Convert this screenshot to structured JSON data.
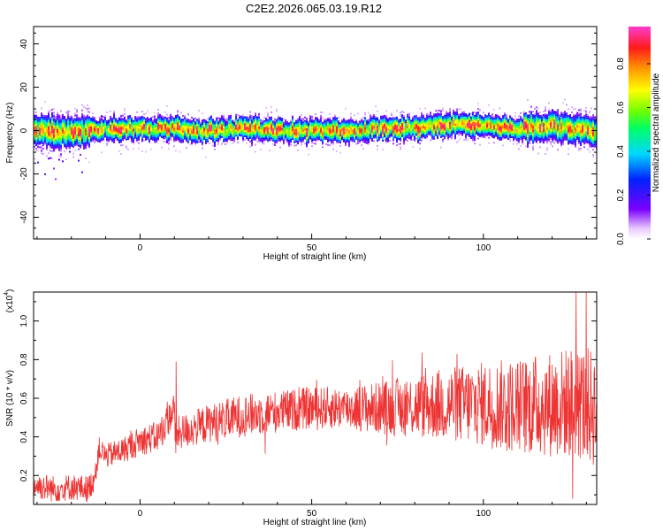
{
  "title": "C2E2.2026.065.03.19.R12",
  "chart_data": [
    {
      "type": "heatmap",
      "xlabel": "Height of straight line (km)",
      "ylabel": "Frequency (Hz)",
      "xlim": [
        -31,
        133
      ],
      "ylim": [
        -50,
        48
      ],
      "xticks": [
        0,
        50,
        100
      ],
      "yticks": [
        40,
        20,
        0,
        -20,
        -40
      ],
      "grid": false,
      "ridge": {
        "description_values_x": [
          -30,
          -20,
          -10,
          0,
          10,
          20,
          30,
          40,
          50,
          60,
          70,
          80,
          90,
          100,
          110,
          120,
          132
        ],
        "center_freq_hz": [
          0,
          -1,
          1,
          1,
          1,
          0,
          1,
          0,
          0,
          0,
          1,
          1,
          3,
          2,
          1,
          2,
          0
        ]
      },
      "colorbar": {
        "label": "Normalized spectral amplitude",
        "range": [
          0.0,
          0.97
        ],
        "ticks": [
          "0.0",
          "0.2",
          "0.4",
          "0.6",
          "0.8"
        ],
        "tick_values": [
          0.0,
          0.2,
          0.4,
          0.6,
          0.8
        ]
      }
    },
    {
      "type": "line",
      "xlabel": "Height of straight line (km)",
      "ylabel": "SNR (10 * v/v)",
      "scale_note": "(x10^4)",
      "scale_base": "(x10",
      "scale_exp": "4",
      "xlim": [
        -31,
        133
      ],
      "ylim": [
        0.05,
        1.15
      ],
      "xticks": [
        0,
        50,
        100
      ],
      "yticks": [
        0.2,
        0.4,
        0.6,
        0.8,
        1.0
      ],
      "grid": false,
      "series": [
        {
          "color": "#ee3333",
          "x": [
            -31,
            -25,
            -20,
            -15,
            -13,
            -12,
            -10,
            -5,
            0,
            5,
            8,
            10,
            10.5,
            11,
            15,
            20,
            30,
            40,
            50,
            60,
            70,
            80,
            90,
            100,
            110,
            120,
            127,
            130,
            133
          ],
          "y": [
            0.15,
            0.13,
            0.14,
            0.13,
            0.2,
            0.34,
            0.3,
            0.33,
            0.38,
            0.4,
            0.48,
            0.55,
            0.3,
            0.42,
            0.44,
            0.47,
            0.51,
            0.53,
            0.55,
            0.55,
            0.55,
            0.56,
            0.57,
            0.57,
            0.56,
            0.57,
            0.58,
            0.56,
            0.55
          ],
          "peaks": [
            {
              "x": 10.5,
              "y": 0.79
            },
            {
              "x": 127,
              "y": 1.15
            },
            {
              "x": 126,
              "y": 0.08
            }
          ]
        }
      ]
    }
  ]
}
